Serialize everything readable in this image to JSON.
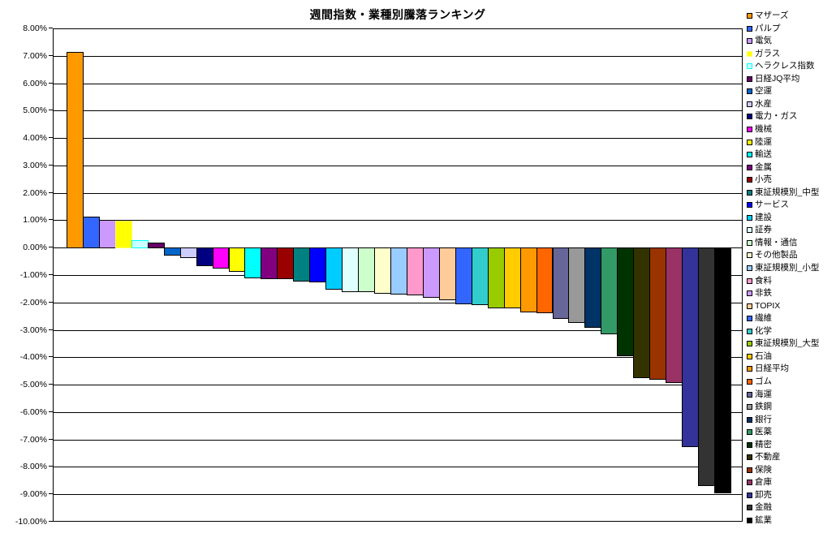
{
  "chart_data": {
    "type": "bar",
    "title": "週間指数・業種別騰落ランキング",
    "xlabel": "",
    "ylabel": "",
    "ylim": [
      -10,
      8
    ],
    "ytick_step": 1,
    "grid": true,
    "legend_position": "right",
    "ytick_labels": [
      "8.00%",
      "7.00%",
      "6.00%",
      "5.00%",
      "4.00%",
      "3.00%",
      "2.00%",
      "1.00%",
      "0.00%",
      "-1.00%",
      "-2.00%",
      "-3.00%",
      "-4.00%",
      "-5.00%",
      "-6.00%",
      "-7.00%",
      "-8.00%",
      "-9.00%",
      "-10.00%"
    ],
    "series": [
      {
        "name": "マザーズ",
        "value": 7.15,
        "fill": "#FF9900",
        "border": "#000000"
      },
      {
        "name": "パルプ",
        "value": 1.12,
        "fill": "#3366FF",
        "border": "#000000"
      },
      {
        "name": "電気",
        "value": 1.0,
        "fill": "#CC99FF",
        "border": "#000000"
      },
      {
        "name": "ガラス",
        "value": 0.98,
        "fill": "#FFFF00",
        "border": "#FFFF66"
      },
      {
        "name": "ヘラクレス指数",
        "value": 0.28,
        "fill": "#CCFFFF",
        "border": "#00FFFF"
      },
      {
        "name": "日経JQ平均",
        "value": 0.18,
        "fill": "#660066",
        "border": "#000000"
      },
      {
        "name": "空運",
        "value": -0.27,
        "fill": "#0066CC",
        "border": "#000000"
      },
      {
        "name": "水産",
        "value": -0.36,
        "fill": "#CCCCFF",
        "border": "#000000"
      },
      {
        "name": "電力・ガス",
        "value": -0.65,
        "fill": "#000080",
        "border": "#000000"
      },
      {
        "name": "機械",
        "value": -0.72,
        "fill": "#FF00FF",
        "border": "#000000"
      },
      {
        "name": "陸運",
        "value": -0.84,
        "fill": "#FFFF00",
        "border": "#000000"
      },
      {
        "name": "輸送",
        "value": -1.08,
        "fill": "#00FFFF",
        "border": "#000000"
      },
      {
        "name": "金属",
        "value": -1.11,
        "fill": "#800080",
        "border": "#000000"
      },
      {
        "name": "小売",
        "value": -1.13,
        "fill": "#990000",
        "border": "#000000"
      },
      {
        "name": "東証規模別_中型",
        "value": -1.21,
        "fill": "#008080",
        "border": "#000000"
      },
      {
        "name": "サービス",
        "value": -1.25,
        "fill": "#0000FF",
        "border": "#000000"
      },
      {
        "name": "建設",
        "value": -1.5,
        "fill": "#00CCFF",
        "border": "#000000"
      },
      {
        "name": "証券",
        "value": -1.58,
        "fill": "#E0FFFF",
        "border": "#000000"
      },
      {
        "name": "情報・通信",
        "value": -1.6,
        "fill": "#CCFFCC",
        "border": "#000000"
      },
      {
        "name": "その他製品",
        "value": -1.65,
        "fill": "#FFFFCC",
        "border": "#000000"
      },
      {
        "name": "東証規模別_小型",
        "value": -1.68,
        "fill": "#99CCFF",
        "border": "#000000"
      },
      {
        "name": "食料",
        "value": -1.7,
        "fill": "#FF99CC",
        "border": "#000000"
      },
      {
        "name": "非鉄",
        "value": -1.81,
        "fill": "#CC99FF",
        "border": "#000000"
      },
      {
        "name": "TOPIX",
        "value": -1.89,
        "fill": "#FFCC99",
        "border": "#000000"
      },
      {
        "name": "繊維",
        "value": -2.04,
        "fill": "#3366FF",
        "border": "#000000"
      },
      {
        "name": "化学",
        "value": -2.07,
        "fill": "#33CCCC",
        "border": "#000000"
      },
      {
        "name": "東証規模別_大型",
        "value": -2.17,
        "fill": "#99CC00",
        "border": "#000000"
      },
      {
        "name": "石油",
        "value": -2.18,
        "fill": "#FFCC00",
        "border": "#000000"
      },
      {
        "name": "日経平均",
        "value": -2.32,
        "fill": "#FF9900",
        "border": "#000000"
      },
      {
        "name": "ゴム",
        "value": -2.37,
        "fill": "#FF6600",
        "border": "#000000"
      },
      {
        "name": "海運",
        "value": -2.58,
        "fill": "#666699",
        "border": "#000000"
      },
      {
        "name": "鉄鋼",
        "value": -2.71,
        "fill": "#999999",
        "border": "#000000"
      },
      {
        "name": "銀行",
        "value": -2.9,
        "fill": "#003366",
        "border": "#000000"
      },
      {
        "name": "医薬",
        "value": -3.12,
        "fill": "#339966",
        "border": "#000000"
      },
      {
        "name": "精密",
        "value": -3.92,
        "fill": "#003300",
        "border": "#000000"
      },
      {
        "name": "不動産",
        "value": -4.73,
        "fill": "#333300",
        "border": "#000000"
      },
      {
        "name": "保険",
        "value": -4.8,
        "fill": "#993300",
        "border": "#000000"
      },
      {
        "name": "倉庫",
        "value": -4.92,
        "fill": "#993366",
        "border": "#000000"
      },
      {
        "name": "卸売",
        "value": -7.25,
        "fill": "#333399",
        "border": "#000000"
      },
      {
        "name": "金融",
        "value": -8.68,
        "fill": "#333333",
        "border": "#000000"
      },
      {
        "name": "鉱業",
        "value": -8.93,
        "fill": "#000000",
        "border": "#000000"
      }
    ]
  }
}
